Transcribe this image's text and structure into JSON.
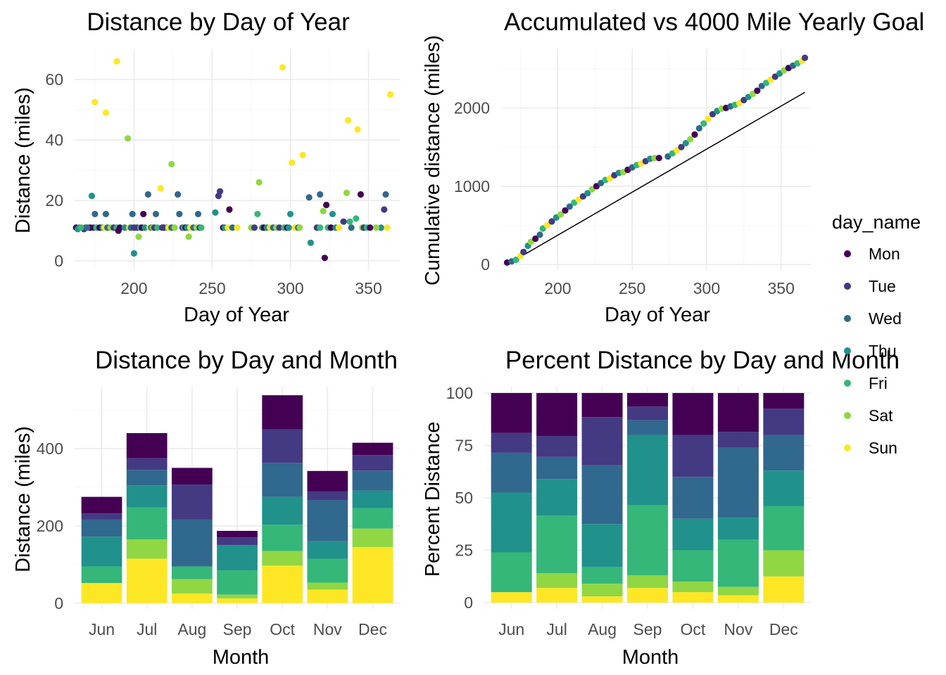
{
  "colors": {
    "Mon": "#440154",
    "Tue": "#443983",
    "Wed": "#31688e",
    "Thu": "#21918c",
    "Fri": "#35b779",
    "Sat": "#90d743",
    "Sun": "#fde725",
    "goal_line": "#000000"
  },
  "legend": {
    "title": "day_name",
    "items": [
      "Mon",
      "Tue",
      "Wed",
      "Thu",
      "Fri",
      "Sat",
      "Sun"
    ]
  },
  "chart_data": [
    {
      "type": "scatter",
      "title": "Distance by Day of Year",
      "xlabel": "Day of Year",
      "ylabel": "Distance (miles)",
      "xlim": [
        162,
        370
      ],
      "ylim": [
        -3,
        70
      ],
      "xticks": [
        200,
        250,
        300,
        350
      ],
      "yticks": [
        0,
        20,
        40,
        60
      ],
      "grid": true,
      "series": [
        {
          "name": "Mon",
          "points": [
            [
              172,
              11
            ],
            [
              190,
              10
            ],
            [
              206,
              15.5
            ],
            [
              261,
              17
            ],
            [
              322,
              1
            ],
            [
              323,
              18.5
            ],
            [
              345,
              22
            ]
          ]
        },
        {
          "name": "Tue",
          "points": [
            [
              168,
              10.5
            ],
            [
              200,
              11
            ],
            [
              218,
              11
            ],
            [
              254,
              21.5
            ],
            [
              255,
              23
            ],
            [
              334,
              13
            ],
            [
              360,
              17
            ]
          ]
        },
        {
          "name": "Wed",
          "points": [
            [
              170,
              11
            ],
            [
              175,
              15.5
            ],
            [
              182,
              15.5
            ],
            [
              199,
              15.5
            ],
            [
              209,
              22
            ],
            [
              214,
              15.5
            ],
            [
              228,
              22
            ],
            [
              229,
              15.5
            ],
            [
              241,
              15.5
            ],
            [
              312,
              21
            ],
            [
              319,
              22
            ],
            [
              361,
              22
            ]
          ]
        },
        {
          "name": "Thu",
          "points": [
            [
              164,
              10.5
            ],
            [
              173,
              21.5
            ],
            [
              200,
              2.5
            ],
            [
              252,
              16
            ],
            [
              300,
              15.5
            ],
            [
              313,
              6
            ],
            [
              327,
              15.5
            ]
          ]
        },
        {
          "name": "Fri",
          "points": [
            [
              166,
              11
            ],
            [
              279,
              15.5
            ],
            [
              319,
              11
            ],
            [
              338,
              13
            ],
            [
              342,
              14
            ]
          ]
        },
        {
          "name": "Sat",
          "points": [
            [
              196,
              40.5
            ],
            [
              203,
              8
            ],
            [
              224,
              32
            ],
            [
              235,
              8
            ],
            [
              280,
              26
            ],
            [
              321,
              16.5
            ],
            [
              336,
              22.5
            ],
            [
              355,
              11
            ]
          ]
        },
        {
          "name": "Sun",
          "points": [
            [
              175,
              52.5
            ],
            [
              182,
              49
            ],
            [
              189,
              66
            ],
            [
              217,
              24
            ],
            [
              266,
              11
            ],
            [
              295,
              64
            ],
            [
              301,
              32.5
            ],
            [
              308,
              35
            ],
            [
              337,
              46.5
            ],
            [
              343,
              43.5
            ],
            [
              364,
              55
            ]
          ]
        }
      ],
      "baseline_cluster": {
        "value": 11,
        "days": [
          163,
          165,
          167,
          169,
          171,
          174,
          176,
          178,
          180,
          181,
          183,
          185,
          187,
          189,
          191,
          194,
          197,
          198,
          201,
          202,
          204,
          205,
          207,
          210,
          211,
          212,
          213,
          215,
          219,
          221,
          222,
          224,
          226,
          231,
          232,
          233,
          234,
          236,
          238,
          240,
          242,
          243,
          257,
          258,
          260,
          263,
          275,
          277,
          282,
          283,
          285,
          287,
          289,
          291,
          293,
          296,
          298,
          299,
          303,
          305,
          306,
          317,
          324,
          326,
          329,
          331,
          339,
          346,
          347,
          349,
          351,
          358,
          362
        ]
      }
    },
    {
      "type": "scatter",
      "title": "Accumulated vs 4000 Mile Yearly Goal",
      "xlabel": "Day of Year",
      "ylabel": "Cumulative distance (miles)",
      "xlim": [
        162,
        370
      ],
      "ylim": [
        -70,
        2750
      ],
      "xticks": [
        200,
        250,
        300,
        350
      ],
      "yticks": [
        0,
        1000,
        2000
      ],
      "grid": true,
      "goal_line": {
        "x0": 166,
        "y0": 0,
        "x1": 366,
        "y1": 2200,
        "label": "4000 Mile Yearly Goal"
      },
      "cumulative_points": [
        [
          166,
          25
        ],
        [
          169,
          40
        ],
        [
          172,
          60
        ],
        [
          175,
          110
        ],
        [
          177,
          160
        ],
        [
          180,
          240
        ],
        [
          182,
          290
        ],
        [
          185,
          330
        ],
        [
          188,
          380
        ],
        [
          190,
          460
        ],
        [
          193,
          500
        ],
        [
          196,
          550
        ],
        [
          199,
          600
        ],
        [
          202,
          640
        ],
        [
          205,
          690
        ],
        [
          208,
          740
        ],
        [
          211,
          790
        ],
        [
          214,
          830
        ],
        [
          217,
          870
        ],
        [
          220,
          910
        ],
        [
          223,
          960
        ],
        [
          226,
          1000
        ],
        [
          229,
          1040
        ],
        [
          232,
          1080
        ],
        [
          235,
          1100
        ],
        [
          238,
          1140
        ],
        [
          241,
          1170
        ],
        [
          244,
          1180
        ],
        [
          247,
          1210
        ],
        [
          250,
          1240
        ],
        [
          253,
          1270
        ],
        [
          256,
          1290
        ],
        [
          259,
          1320
        ],
        [
          262,
          1350
        ],
        [
          265,
          1360
        ],
        [
          268,
          1360
        ],
        [
          274,
          1380
        ],
        [
          277,
          1420
        ],
        [
          280,
          1460
        ],
        [
          283,
          1500
        ],
        [
          286,
          1550
        ],
        [
          289,
          1600
        ],
        [
          292,
          1660
        ],
        [
          295,
          1740
        ],
        [
          298,
          1800
        ],
        [
          301,
          1860
        ],
        [
          304,
          1920
        ],
        [
          307,
          1960
        ],
        [
          310,
          1990
        ],
        [
          313,
          2000
        ],
        [
          316,
          2020
        ],
        [
          319,
          2040
        ],
        [
          322,
          2060
        ],
        [
          325,
          2100
        ],
        [
          328,
          2140
        ],
        [
          331,
          2180
        ],
        [
          334,
          2220
        ],
        [
          337,
          2280
        ],
        [
          340,
          2320
        ],
        [
          343,
          2360
        ],
        [
          346,
          2400
        ],
        [
          349,
          2440
        ],
        [
          352,
          2480
        ],
        [
          355,
          2510
        ],
        [
          358,
          2540
        ],
        [
          361,
          2570
        ],
        [
          364,
          2600
        ],
        [
          366,
          2640
        ]
      ],
      "day_cycle": [
        "Mon",
        "Tue",
        "Wed",
        "Thu",
        "Fri",
        "Sat",
        "Sun"
      ]
    },
    {
      "type": "bar",
      "stacked": true,
      "title": "Distance by Day and Month",
      "xlabel": "Month",
      "ylabel": "Distance (miles)",
      "ylim": [
        -15,
        560
      ],
      "yticks": [
        0,
        200,
        400
      ],
      "grid": true,
      "categories": [
        "Jun",
        "Jul",
        "Aug",
        "Sep",
        "Oct",
        "Nov",
        "Dec"
      ],
      "stack_order_bottom_to_top": [
        "Sun",
        "Sat",
        "Fri",
        "Thu",
        "Wed",
        "Tue",
        "Mon"
      ],
      "series": [
        {
          "name": "Sun",
          "values": [
            52,
            115,
            25,
            12,
            97,
            35,
            145
          ]
        },
        {
          "name": "Sat",
          "values": [
            0,
            50,
            37,
            10,
            38,
            18,
            48
          ]
        },
        {
          "name": "Fri",
          "values": [
            43,
            83,
            33,
            63,
            68,
            62,
            53
          ]
        },
        {
          "name": "Thu",
          "values": [
            77,
            57,
            0,
            65,
            72,
            45,
            45
          ]
        },
        {
          "name": "Wed",
          "values": [
            45,
            40,
            122,
            0,
            88,
            107,
            52
          ]
        },
        {
          "name": "Tue",
          "values": [
            15,
            30,
            90,
            20,
            87,
            22,
            40
          ]
        },
        {
          "name": "Mon",
          "values": [
            43,
            65,
            43,
            17,
            88,
            53,
            32
          ]
        }
      ]
    },
    {
      "type": "bar",
      "stacked": true,
      "title": "Percent Distance by Day and Month",
      "xlabel": "Month",
      "ylabel": "Percent Distance",
      "ylim": [
        -3,
        103
      ],
      "yticks": [
        0,
        25,
        50,
        75,
        100
      ],
      "grid": true,
      "categories": [
        "Jun",
        "Jul",
        "Aug",
        "Sep",
        "Oct",
        "Nov",
        "Dec"
      ],
      "stack_order_bottom_to_top": [
        "Sun",
        "Sat",
        "Fri",
        "Thu",
        "Wed",
        "Tue",
        "Mon"
      ],
      "series": [
        {
          "name": "Sun",
          "values": [
            5,
            7,
            3,
            7,
            5,
            3.5,
            12.5
          ]
        },
        {
          "name": "Sat",
          "values": [
            0,
            7,
            6,
            6,
            5,
            4,
            12.5
          ]
        },
        {
          "name": "Fri",
          "values": [
            19,
            27.5,
            8,
            33.5,
            15,
            22.5,
            21
          ]
        },
        {
          "name": "Thu",
          "values": [
            28.5,
            17.5,
            20.5,
            33.5,
            15,
            10.5,
            17
          ]
        },
        {
          "name": "Wed",
          "values": [
            19,
            10.5,
            28,
            7,
            20,
            33.5,
            17
          ]
        },
        {
          "name": "Tue",
          "values": [
            9.5,
            10,
            23,
            6.5,
            20,
            7.5,
            12.5
          ]
        },
        {
          "name": "Mon",
          "values": [
            19,
            20.5,
            11.5,
            6.5,
            20,
            18.5,
            7.5
          ]
        }
      ]
    }
  ]
}
